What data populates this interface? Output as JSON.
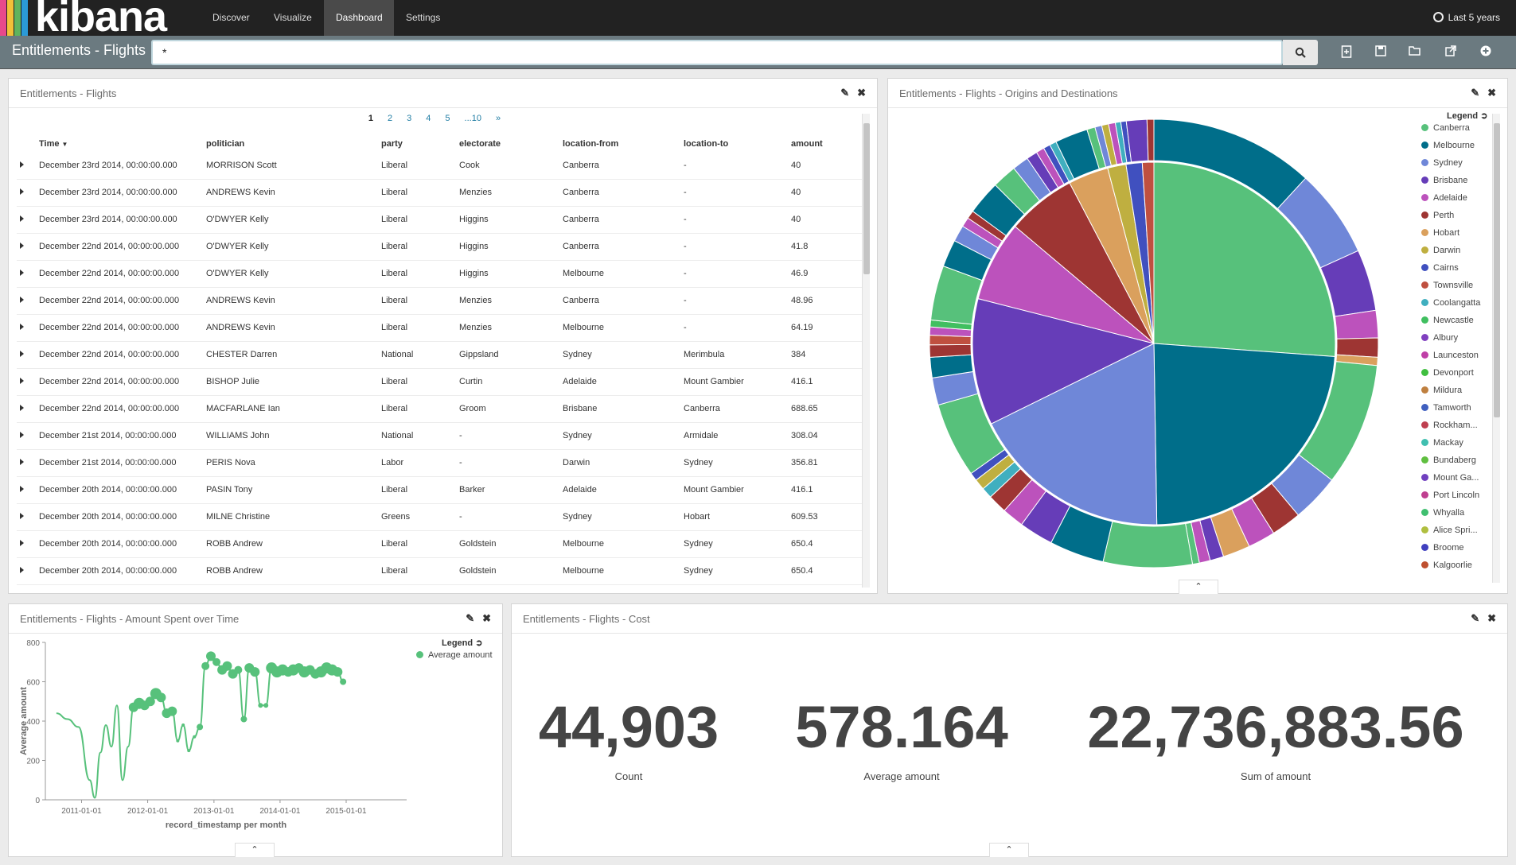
{
  "app": {
    "logo_text": "kibana"
  },
  "nav": {
    "discover": "Discover",
    "visualize": "Visualize",
    "dashboard": "Dashboard",
    "settings": "Settings",
    "time_range": "Last 5 years"
  },
  "dashboard": {
    "title": "Entitlements - Flights",
    "query": "*"
  },
  "panels": {
    "table": {
      "title": "Entitlements - Flights"
    },
    "pie": {
      "title": "Entitlements - Flights - Origins and Destinations"
    },
    "line": {
      "title": "Entitlements - Flights - Amount Spent over Time"
    },
    "cost": {
      "title": "Entitlements - Flights - Cost"
    }
  },
  "pager": {
    "pages": [
      "1",
      "2",
      "3",
      "4",
      "5",
      "...10",
      "»"
    ]
  },
  "table": {
    "columns": [
      "Time",
      "politician",
      "party",
      "electorate",
      "location-from",
      "location-to",
      "amount"
    ],
    "rows": [
      [
        "December 23rd 2014, 00:00:00.000",
        "MORRISON Scott",
        "Liberal",
        "Cook",
        "Canberra",
        "-",
        "40"
      ],
      [
        "December 23rd 2014, 00:00:00.000",
        "ANDREWS Kevin",
        "Liberal",
        "Menzies",
        "Canberra",
        "-",
        "40"
      ],
      [
        "December 23rd 2014, 00:00:00.000",
        "O'DWYER Kelly",
        "Liberal",
        "Higgins",
        "Canberra",
        "-",
        "40"
      ],
      [
        "December 22nd 2014, 00:00:00.000",
        "O'DWYER Kelly",
        "Liberal",
        "Higgins",
        "Canberra",
        "-",
        "41.8"
      ],
      [
        "December 22nd 2014, 00:00:00.000",
        "O'DWYER Kelly",
        "Liberal",
        "Higgins",
        "Melbourne",
        "-",
        "46.9"
      ],
      [
        "December 22nd 2014, 00:00:00.000",
        "ANDREWS Kevin",
        "Liberal",
        "Menzies",
        "Canberra",
        "-",
        "48.96"
      ],
      [
        "December 22nd 2014, 00:00:00.000",
        "ANDREWS Kevin",
        "Liberal",
        "Menzies",
        "Melbourne",
        "-",
        "64.19"
      ],
      [
        "December 22nd 2014, 00:00:00.000",
        "CHESTER Darren",
        "National",
        "Gippsland",
        "Sydney",
        "Merimbula",
        "384"
      ],
      [
        "December 22nd 2014, 00:00:00.000",
        "BISHOP Julie",
        "Liberal",
        "Curtin",
        "Adelaide",
        "Mount Gambier",
        "416.1"
      ],
      [
        "December 22nd 2014, 00:00:00.000",
        "MACFARLANE Ian",
        "Liberal",
        "Groom",
        "Brisbane",
        "Canberra",
        "688.65"
      ],
      [
        "December 21st 2014, 00:00:00.000",
        "WILLIAMS John",
        "National",
        "-",
        "Sydney",
        "Armidale",
        "308.04"
      ],
      [
        "December 21st 2014, 00:00:00.000",
        "PERIS Nova",
        "Labor",
        "-",
        "Darwin",
        "Sydney",
        "356.81"
      ],
      [
        "December 20th 2014, 00:00:00.000",
        "PASIN Tony",
        "Liberal",
        "Barker",
        "Adelaide",
        "Mount Gambier",
        "416.1"
      ],
      [
        "December 20th 2014, 00:00:00.000",
        "MILNE Christine",
        "Greens",
        "-",
        "Sydney",
        "Hobart",
        "609.53"
      ],
      [
        "December 20th 2014, 00:00:00.000",
        "ROBB Andrew",
        "Liberal",
        "Goldstein",
        "Melbourne",
        "Sydney",
        "650.4"
      ],
      [
        "December 20th 2014, 00:00:00.000",
        "ROBB Andrew",
        "Liberal",
        "Goldstein",
        "Melbourne",
        "Sydney",
        "650.4"
      ]
    ]
  },
  "pie_legend": {
    "title": "Legend",
    "items": [
      {
        "label": "Canberra",
        "color": "#57c17b"
      },
      {
        "label": "Melbourne",
        "color": "#006e8a"
      },
      {
        "label": "Sydney",
        "color": "#6f87d8"
      },
      {
        "label": "Brisbane",
        "color": "#663db8"
      },
      {
        "label": "Adelaide",
        "color": "#bc52bc"
      },
      {
        "label": "Perth",
        "color": "#9e3533"
      },
      {
        "label": "Hobart",
        "color": "#daa05d"
      },
      {
        "label": "Darwin",
        "color": "#bfaf40"
      },
      {
        "label": "Cairns",
        "color": "#4050bf"
      },
      {
        "label": "Townsville",
        "color": "#bf5040"
      },
      {
        "label": "Coolangatta",
        "color": "#40afbf"
      },
      {
        "label": "Newcastle",
        "color": "#40bf60"
      },
      {
        "label": "Albury",
        "color": "#8040bf"
      },
      {
        "label": "Launceston",
        "color": "#bf40a7"
      },
      {
        "label": "Devonport",
        "color": "#40bf40"
      },
      {
        "label": "Mildura",
        "color": "#bf8040"
      },
      {
        "label": "Tamworth",
        "color": "#4060bf"
      },
      {
        "label": "Rockham...",
        "color": "#bf4050"
      },
      {
        "label": "Mackay",
        "color": "#40bfb0"
      },
      {
        "label": "Bundaberg",
        "color": "#60bf40"
      },
      {
        "label": "Mount Ga...",
        "color": "#7040bf"
      },
      {
        "label": "Port Lincoln",
        "color": "#bf4090"
      },
      {
        "label": "Whyalla",
        "color": "#40bf70"
      },
      {
        "label": "Alice Spri...",
        "color": "#b0bf40"
      },
      {
        "label": "Broome",
        "color": "#4040bf"
      },
      {
        "label": "Kalgoorlie",
        "color": "#bf5030"
      }
    ]
  },
  "pie_data": {
    "inner": [
      {
        "label": "Canberra",
        "value": 25.5,
        "color": "#57c17b"
      },
      {
        "label": "Melbourne",
        "value": 23.0,
        "color": "#006e8a"
      },
      {
        "label": "Sydney",
        "value": 17.5,
        "color": "#6f87d8"
      },
      {
        "label": "Brisbane",
        "value": 11.0,
        "color": "#663db8"
      },
      {
        "label": "Adelaide",
        "value": 7.0,
        "color": "#bc52bc"
      },
      {
        "label": "Perth",
        "value": 6.0,
        "color": "#9e3533"
      },
      {
        "label": "Hobart",
        "value": 3.5,
        "color": "#daa05d"
      },
      {
        "label": "Darwin",
        "value": 1.6,
        "color": "#bfaf40"
      },
      {
        "label": "Cairns",
        "value": 1.4,
        "color": "#4050bf"
      },
      {
        "label": "Townsville",
        "value": 1.0,
        "color": "#bf5040"
      }
    ],
    "outer": [
      {
        "value": 12.0,
        "color": "#006e8a"
      },
      {
        "value": 6.5,
        "color": "#6f87d8"
      },
      {
        "value": 4.5,
        "color": "#663db8"
      },
      {
        "value": 2.0,
        "color": "#bc52bc"
      },
      {
        "value": 1.4,
        "color": "#9e3533"
      },
      {
        "value": 0.6,
        "color": "#daa05d"
      },
      {
        "value": 9.0,
        "color": "#57c17b"
      },
      {
        "value": 3.5,
        "color": "#6f87d8"
      },
      {
        "value": 2.2,
        "color": "#9e3533"
      },
      {
        "value": 2.0,
        "color": "#bc52bc"
      },
      {
        "value": 2.0,
        "color": "#daa05d"
      },
      {
        "value": 1.0,
        "color": "#663db8"
      },
      {
        "value": 0.8,
        "color": "#bc52bc"
      },
      {
        "value": 0.5,
        "color": "#57c17b"
      },
      {
        "value": 6.5,
        "color": "#57c17b"
      },
      {
        "value": 4.0,
        "color": "#006e8a"
      },
      {
        "value": 2.5,
        "color": "#663db8"
      },
      {
        "value": 1.6,
        "color": "#bc52bc"
      },
      {
        "value": 1.4,
        "color": "#9e3533"
      },
      {
        "value": 0.8,
        "color": "#40afbf"
      },
      {
        "value": 0.8,
        "color": "#bfaf40"
      },
      {
        "value": 0.6,
        "color": "#4050bf"
      },
      {
        "value": 5.5,
        "color": "#57c17b"
      },
      {
        "value": 2.0,
        "color": "#6f87d8"
      },
      {
        "value": 1.5,
        "color": "#006e8a"
      },
      {
        "value": 0.9,
        "color": "#9e3533"
      },
      {
        "value": 0.7,
        "color": "#bf5040"
      },
      {
        "value": 0.6,
        "color": "#bc52bc"
      },
      {
        "value": 0.5,
        "color": "#40bf60"
      },
      {
        "value": 4.0,
        "color": "#57c17b"
      },
      {
        "value": 2.0,
        "color": "#006e8a"
      },
      {
        "value": 1.2,
        "color": "#6f87d8"
      },
      {
        "value": 0.7,
        "color": "#bc52bc"
      },
      {
        "value": 0.6,
        "color": "#9e3533"
      },
      {
        "value": 2.5,
        "color": "#006e8a"
      },
      {
        "value": 1.8,
        "color": "#57c17b"
      },
      {
        "value": 1.2,
        "color": "#6f87d8"
      },
      {
        "value": 0.8,
        "color": "#663db8"
      },
      {
        "value": 0.6,
        "color": "#bc52bc"
      },
      {
        "value": 0.5,
        "color": "#4050bf"
      },
      {
        "value": 0.5,
        "color": "#40afbf"
      },
      {
        "value": 2.4,
        "color": "#006e8a"
      },
      {
        "value": 0.6,
        "color": "#57c17b"
      },
      {
        "value": 0.5,
        "color": "#6f87d8"
      },
      {
        "value": 0.5,
        "color": "#bfaf40"
      },
      {
        "value": 0.5,
        "color": "#bc52bc"
      },
      {
        "value": 0.4,
        "color": "#40afbf"
      },
      {
        "value": 0.4,
        "color": "#4050bf"
      },
      {
        "value": 1.5,
        "color": "#663db8"
      },
      {
        "value": 0.5,
        "color": "#9e3533"
      }
    ]
  },
  "chart_data": [
    {
      "type": "line",
      "title": "Entitlements - Flights - Amount Spent over Time",
      "xlabel": "record_timestamp per month",
      "ylabel": "Average amount",
      "ylim": [
        0,
        800
      ],
      "yticks": [
        "0",
        "200",
        "400",
        "600",
        "800"
      ],
      "xticks": [
        "2011-01-01",
        "2012-01-01",
        "2013-01-01",
        "2014-01-01",
        "2015-01-01"
      ],
      "legend_title": "Legend",
      "series": [
        {
          "name": "Average amount",
          "color": "#57c17b",
          "x": [
            "2010-08",
            "2010-10",
            "2010-12",
            "2011-02",
            "2011-03",
            "2011-04",
            "2011-05",
            "2011-06",
            "2011-07",
            "2011-08",
            "2011-09",
            "2011-10",
            "2011-11",
            "2011-12",
            "2012-01",
            "2012-02",
            "2012-03",
            "2012-04",
            "2012-05",
            "2012-06",
            "2012-07",
            "2012-08",
            "2012-09",
            "2012-10",
            "2012-11",
            "2012-12",
            "2013-01",
            "2013-02",
            "2013-03",
            "2013-04",
            "2013-05",
            "2013-06",
            "2013-07",
            "2013-08",
            "2013-09",
            "2013-10",
            "2013-11",
            "2013-12",
            "2014-01",
            "2014-02",
            "2014-03",
            "2014-04",
            "2014-05",
            "2014-06",
            "2014-07",
            "2014-08",
            "2014-09",
            "2014-10",
            "2014-11",
            "2014-12"
          ],
          "y": [
            440,
            410,
            370,
            100,
            10,
            240,
            380,
            270,
            480,
            100,
            270,
            470,
            490,
            480,
            500,
            540,
            520,
            440,
            450,
            300,
            380,
            250,
            320,
            370,
            680,
            730,
            700,
            660,
            680,
            640,
            660,
            410,
            670,
            650,
            480,
            480,
            670,
            650,
            660,
            650,
            660,
            670,
            650,
            660,
            640,
            650,
            670,
            660,
            650,
            600
          ],
          "sizes": [
            0,
            0,
            0,
            0,
            0,
            0,
            0,
            0,
            0,
            0,
            0,
            6,
            7,
            6,
            6,
            7,
            6,
            6,
            6,
            2,
            2,
            2,
            2,
            4,
            5,
            6,
            5,
            6,
            6,
            6,
            5,
            4,
            6,
            6,
            3,
            3,
            7,
            7,
            7,
            6,
            7,
            6,
            7,
            6,
            6,
            7,
            7,
            7,
            6,
            4
          ]
        }
      ]
    },
    {
      "type": "pie",
      "title": "Entitlements - Flights - Origins and Destinations",
      "note": "two-ring pie: inner ring location-from, outer ring location-to"
    }
  ],
  "metrics": [
    {
      "value": "44,903",
      "label": "Count"
    },
    {
      "value": "578.164",
      "label": "Average amount"
    },
    {
      "value": "22,736,883.56",
      "label": "Sum of amount"
    }
  ],
  "colors": {
    "accent": "#57c17b",
    "nav_bg": "#222222",
    "subbar_bg": "#6b7a80"
  }
}
